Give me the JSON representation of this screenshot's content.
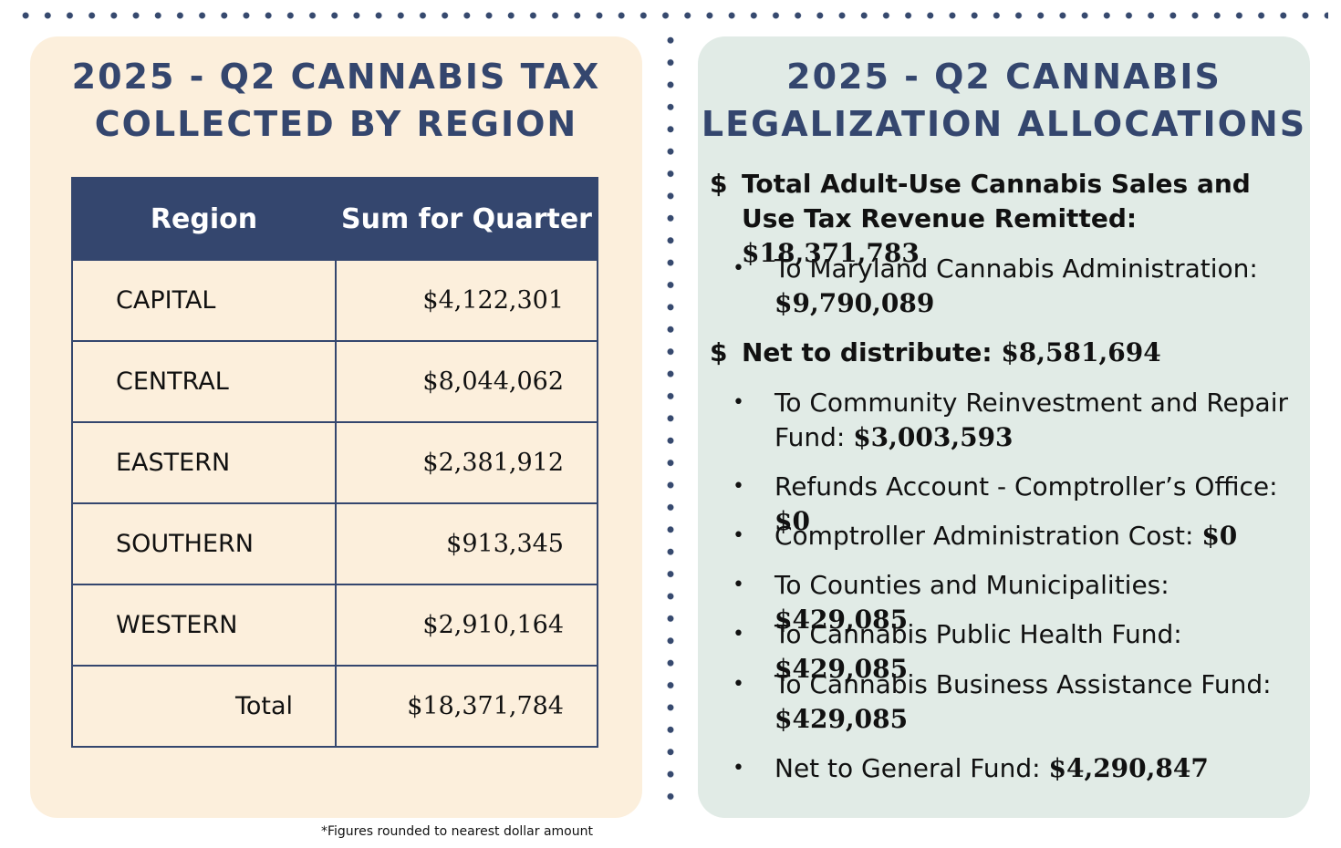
{
  "left": {
    "title_line1": "2025 - Q2 CANNABIS TAX",
    "title_line2": "COLLECTED BY REGION",
    "table": {
      "headers": [
        "Region",
        "Sum for Quarter"
      ],
      "rows": [
        {
          "region": "CAPITAL",
          "sum": "$4,122,301"
        },
        {
          "region": "CENTRAL",
          "sum": "$8,044,062"
        },
        {
          "region": "EASTERN",
          "sum": "$2,381,912"
        },
        {
          "region": "SOUTHERN",
          "sum": "$913,345"
        },
        {
          "region": "WESTERN",
          "sum": "$2,910,164"
        }
      ],
      "total_label": "Total",
      "total_value": "$18,371,784"
    },
    "footnote": "*Figures rounded to nearest dollar amount"
  },
  "right": {
    "title_line1": "2025 - Q2 CANNABIS",
    "title_line2": "LEGALIZATION ALLOCATIONS",
    "sections": [
      {
        "symbol": "$",
        "label": "Total Adult-Use Cannabis Sales and Use Tax Revenue Remitted: ",
        "amount": "$18,371,783",
        "items": [
          {
            "label": "To Maryland Cannabis Administration: ",
            "amount": "$9,790,089"
          }
        ]
      },
      {
        "symbol": "$",
        "label": "Net to distribute: ",
        "amount": "$8,581,694",
        "items": [
          {
            "label": "To Community Reinvestment and Repair Fund:  ",
            "amount": "$3,003,593"
          },
          {
            "label": "Refunds Account - Comptroller’s Office: ",
            "amount": "$0"
          },
          {
            "label": "Comptroller Administration Cost: ",
            "amount": "$0"
          },
          {
            "label": "To Counties and Municipalities: ",
            "amount": "$429,085"
          },
          {
            "label": "To Cannabis Public Health Fund:  ",
            "amount": "$429,085"
          },
          {
            "label": "To Cannabis Business Assistance Fund: ",
            "amount": "$429,085"
          },
          {
            "label": "Net to General Fund: ",
            "amount": "$4,290,847"
          }
        ]
      }
    ],
    "bullet_glyph": "•"
  },
  "colors": {
    "navy": "#34466e",
    "left_panel": "#fcefdc",
    "right_panel": "#e1ebe6"
  }
}
